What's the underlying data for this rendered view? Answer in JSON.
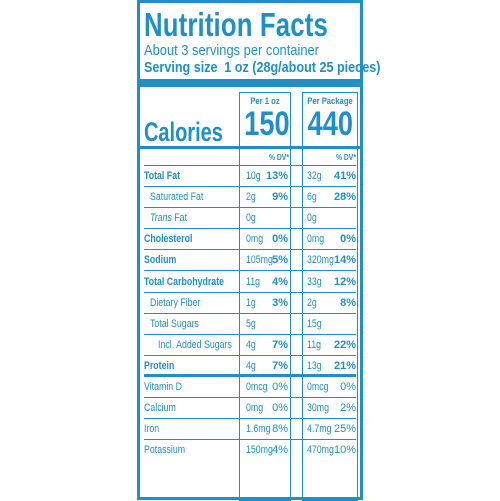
{
  "label": {
    "title": "Nutrition Facts",
    "servings": "About 3 servings per container",
    "serving_size_label": "Serving size",
    "serving_size_value": "1 oz (28g/about 25 pieces)",
    "col1_header": "Per 1 oz",
    "col2_header": "Per Package",
    "calories_label": "Calories",
    "calories_col1": "150",
    "calories_col2": "440",
    "dv_header": "% DV*",
    "rows": [
      {
        "name": "Total Fat",
        "bold": true,
        "indent": false,
        "v1": "10g",
        "p1": "13%",
        "v2": "32g",
        "p2": "41%"
      },
      {
        "name": "Saturated Fat",
        "bold": false,
        "indent": true,
        "v1": "2g",
        "p1": "9%",
        "v2": "6g",
        "p2": "28%"
      },
      {
        "name": "Trans",
        "name_suffix": " Fat",
        "bold": false,
        "indent": true,
        "italic_prefix": true,
        "v1": "0g",
        "p1": "",
        "v2": "0g",
        "p2": ""
      },
      {
        "name": "Cholesterol",
        "bold": true,
        "indent": false,
        "v1": "0mg",
        "p1": "0%",
        "v2": "0mg",
        "p2": "0%"
      },
      {
        "name": "Sodium",
        "bold": true,
        "indent": false,
        "v1": "105mg",
        "p1": "5%",
        "v2": "320mg",
        "p2": "14%"
      },
      {
        "name": "Total Carbohydrate",
        "bold": true,
        "indent": false,
        "v1": "11g",
        "p1": "4%",
        "v2": "33g",
        "p2": "12%"
      },
      {
        "name": "Dietary Fiber",
        "bold": false,
        "indent": true,
        "v1": "1g",
        "p1": "3%",
        "v2": "2g",
        "p2": "8%"
      },
      {
        "name": "Total Sugars",
        "bold": false,
        "indent": true,
        "v1": "5g",
        "p1": "",
        "v2": "15g",
        "p2": ""
      },
      {
        "name": "Incl. Added Sugars",
        "bold": false,
        "indent": true,
        "deep": true,
        "v1": "4g",
        "p1": "7%",
        "v2": "11g",
        "p2": "22%"
      },
      {
        "name": "Protein",
        "bold": true,
        "indent": false,
        "v1": "4g",
        "p1": "7%",
        "v2": "13g",
        "p2": "21%"
      },
      {
        "name": "Vitamin D",
        "bold": false,
        "indent": false,
        "v1": "0mcg",
        "p1": "0%",
        "v2": "0mcg",
        "p2": "0%",
        "light": true
      },
      {
        "name": "Calcium",
        "bold": false,
        "indent": false,
        "v1": "0mg",
        "p1": "0%",
        "v2": "30mg",
        "p2": "2%",
        "light": true
      },
      {
        "name": "Iron",
        "bold": false,
        "indent": false,
        "v1": "1.6mg",
        "p1": "8%",
        "v2": "4.7mg",
        "p2": "25%",
        "light": true
      },
      {
        "name": "Potassium",
        "bold": false,
        "indent": false,
        "v1": "150mg",
        "p1": "4%",
        "v2": "470mg",
        "p2": "10%",
        "light": true
      }
    ]
  },
  "colors": {
    "ink": "#1f8fc9",
    "background": "#ffffff"
  }
}
